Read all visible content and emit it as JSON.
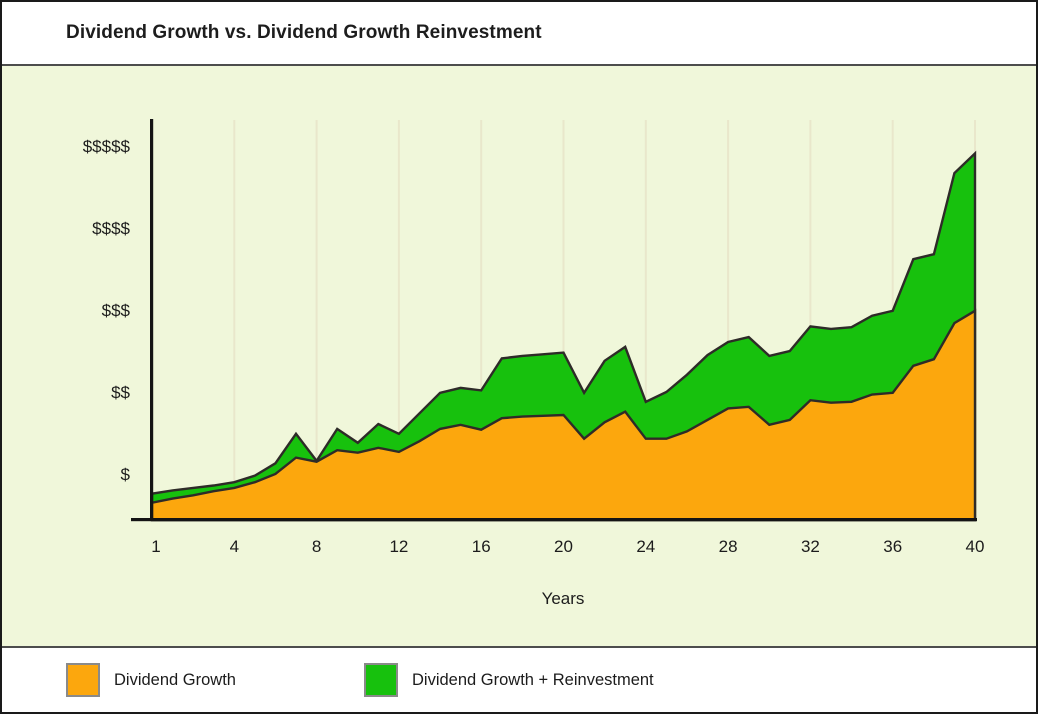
{
  "header": {
    "title": "Dividend Growth vs. Dividend Growth Reinvestment"
  },
  "chart_data": {
    "type": "area",
    "title": "Dividend Growth vs. Dividend Growth Reinvestment",
    "xlabel": "Years",
    "ylabel": "",
    "x_tick_labels": [
      "1",
      "4",
      "8",
      "12",
      "16",
      "20",
      "24",
      "28",
      "32",
      "36",
      "40"
    ],
    "x_tick_years": [
      1,
      4,
      8,
      12,
      16,
      20,
      24,
      28,
      32,
      36,
      40
    ],
    "y_tick_labels": [
      "$",
      "$$",
      "$$$",
      "$$$$",
      "$$$$$"
    ],
    "y_tick_values": [
      1,
      2,
      3,
      4,
      5
    ],
    "x": [
      0,
      1,
      2,
      3,
      4,
      5,
      6,
      7,
      8,
      9,
      10,
      11,
      12,
      13,
      14,
      15,
      16,
      17,
      18,
      19,
      20,
      21,
      22,
      23,
      24,
      25,
      26,
      27,
      28,
      29,
      30,
      31,
      32,
      33,
      34,
      35,
      36,
      37,
      38,
      39,
      40
    ],
    "x_range": [
      0,
      40
    ],
    "y_axis_units": "dollar levels (1 = $, 5 = $$$$$), values estimated from pixel positions",
    "grid": "vertical gridlines at x ticks only",
    "legend_position": "bottom",
    "series": [
      {
        "name": "Dividend Growth",
        "color": "#FCA70D",
        "values": [
          0.65,
          0.7,
          0.74,
          0.79,
          0.83,
          0.9,
          1.0,
          1.2,
          1.15,
          1.29,
          1.26,
          1.32,
          1.27,
          1.4,
          1.55,
          1.6,
          1.54,
          1.68,
          1.7,
          1.71,
          1.72,
          1.43,
          1.63,
          1.76,
          1.43,
          1.43,
          1.52,
          1.66,
          1.8,
          1.82,
          1.6,
          1.66,
          1.9,
          1.87,
          1.88,
          1.97,
          1.99,
          2.32,
          2.4,
          2.84,
          2.99
        ]
      },
      {
        "name": "Dividend Growth + Reinvestment",
        "color": "#17C10D",
        "values": [
          0.76,
          0.8,
          0.83,
          0.86,
          0.9,
          0.98,
          1.13,
          1.49,
          1.16,
          1.55,
          1.38,
          1.61,
          1.49,
          1.74,
          1.99,
          2.05,
          2.02,
          2.41,
          2.44,
          2.46,
          2.48,
          1.99,
          2.38,
          2.55,
          1.88,
          2.0,
          2.21,
          2.45,
          2.61,
          2.67,
          2.44,
          2.5,
          2.8,
          2.77,
          2.79,
          2.93,
          2.99,
          3.62,
          3.68,
          4.67,
          4.91
        ]
      }
    ]
  },
  "legend": {
    "items": [
      {
        "label": "Dividend Growth",
        "color": "#FCA70D"
      },
      {
        "label": "Dividend Growth + Reinvestment",
        "color": "#17C10D"
      }
    ]
  },
  "colors": {
    "dividend_growth": "#FCA70D",
    "reinvestment_green": "#17C10D",
    "panel_background": "#F0F7DA",
    "gridline": "#E9E7CB",
    "area_outline": "#2E2B28",
    "axis": "#141414",
    "text": "#1C1C1C",
    "band_background": "#FFFFFF",
    "divider": "#4D4D4D",
    "outer_border": "#1A1A1A",
    "swatch_border": "#8A8A8A"
  }
}
